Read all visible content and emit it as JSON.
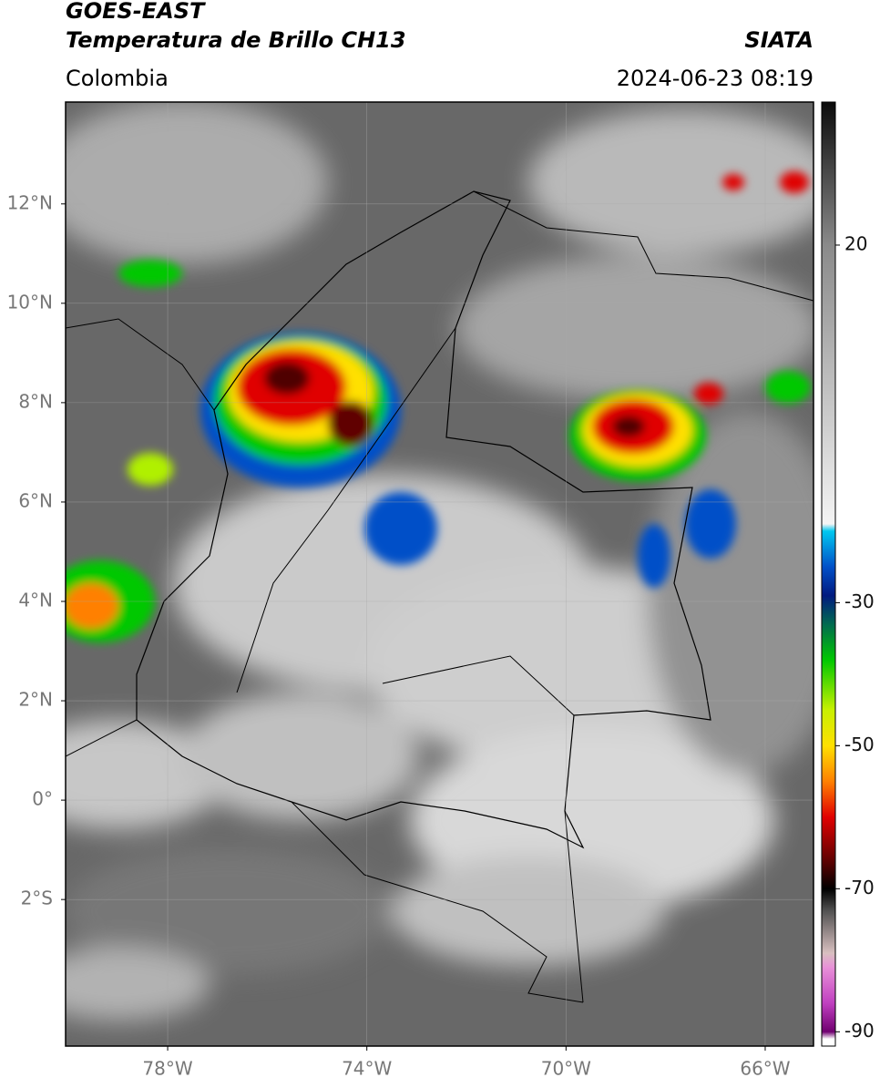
{
  "header": {
    "title": "GOES-EAST",
    "subtitle": "Temperatura de Brillo CH13",
    "region": "Colombia",
    "source": "SIATA",
    "timestamp": "2024-06-23 08:19"
  },
  "map": {
    "xlim": [
      -80.05,
      -65.03
    ],
    "ylim": [
      -4.95,
      14.05
    ],
    "xticks": [
      {
        "value": -78,
        "label": "78°W"
      },
      {
        "value": -74,
        "label": "74°W"
      },
      {
        "value": -70,
        "label": "70°W"
      },
      {
        "value": -66,
        "label": "66°W"
      }
    ],
    "yticks": [
      {
        "value": 12,
        "label": "12°N"
      },
      {
        "value": 10,
        "label": "10°N"
      },
      {
        "value": 8,
        "label": "8°N"
      },
      {
        "value": 6,
        "label": "6°N"
      },
      {
        "value": 4,
        "label": "4°N"
      },
      {
        "value": 2,
        "label": "2°N"
      },
      {
        "value": 0,
        "label": "0°"
      },
      {
        "value": -2,
        "label": "2°S"
      }
    ],
    "grid": true
  },
  "colorbar": {
    "lim": [
      -92,
      40
    ],
    "ticks": [
      20,
      -30,
      -50,
      -70,
      -90
    ],
    "colormap": [
      [
        40,
        "#0a0a0a"
      ],
      [
        20,
        "#8a8a8a"
      ],
      [
        -19,
        "#f4f4f4"
      ],
      [
        -20,
        "#00c8f0"
      ],
      [
        -25,
        "#0050c8"
      ],
      [
        -29,
        "#001a80"
      ],
      [
        -33,
        "#006a50"
      ],
      [
        -38,
        "#00c800"
      ],
      [
        -45,
        "#c8f000"
      ],
      [
        -50,
        "#ffe000"
      ],
      [
        -55,
        "#ff8000"
      ],
      [
        -60,
        "#e00000"
      ],
      [
        -66,
        "#600000"
      ],
      [
        -70,
        "#000000"
      ],
      [
        -73,
        "#505050"
      ],
      [
        -79,
        "#d8c0c0"
      ],
      [
        -81,
        "#e890d8"
      ],
      [
        -86,
        "#c040c0"
      ],
      [
        -90,
        "#700070"
      ],
      [
        -91,
        "#ffffff"
      ]
    ]
  }
}
